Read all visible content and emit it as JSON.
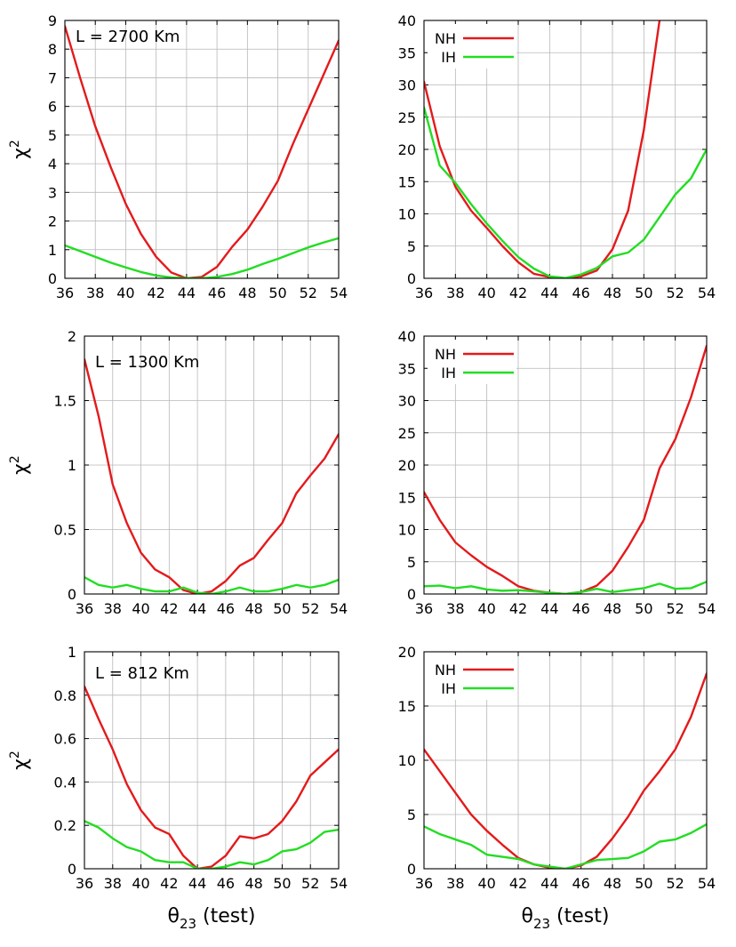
{
  "chart_data": [
    {
      "type": "line",
      "panel": "row1-left",
      "annotation": "L = 2700 Km",
      "title": "",
      "xlabel": "",
      "ylabel": "χ2",
      "xlim": [
        36,
        54
      ],
      "ylim": [
        0,
        9
      ],
      "xticks": [
        "36",
        "38",
        "40",
        "42",
        "44",
        "46",
        "48",
        "50",
        "52",
        "54"
      ],
      "yticks": [
        "0",
        "1",
        "2",
        "3",
        "4",
        "5",
        "6",
        "7",
        "8",
        "9"
      ],
      "x": [
        36,
        37,
        38,
        39,
        40,
        41,
        42,
        43,
        44,
        45,
        46,
        47,
        48,
        49,
        50,
        51,
        52,
        53,
        54
      ],
      "series": [
        {
          "name": "NH",
          "color": "#e31a1c",
          "values": [
            8.8,
            7.0,
            5.3,
            3.9,
            2.6,
            1.55,
            0.75,
            0.2,
            0.0,
            0.05,
            0.4,
            1.1,
            1.7,
            2.5,
            3.4,
            4.7,
            5.9,
            7.1,
            8.3
          ]
        },
        {
          "name": "IH",
          "color": "#22dd22",
          "values": [
            1.15,
            0.95,
            0.75,
            0.55,
            0.38,
            0.22,
            0.1,
            0.03,
            0.0,
            0.0,
            0.05,
            0.15,
            0.3,
            0.5,
            0.68,
            0.88,
            1.08,
            1.25,
            1.4
          ]
        }
      ]
    },
    {
      "type": "line",
      "panel": "row1-right",
      "annotation": "",
      "title": "",
      "xlabel": "",
      "ylabel": "",
      "xlim": [
        36,
        54
      ],
      "ylim": [
        0,
        40
      ],
      "xticks": [
        "36",
        "38",
        "40",
        "42",
        "44",
        "46",
        "48",
        "50",
        "52",
        "54"
      ],
      "yticks": [
        "0",
        "5",
        "10",
        "15",
        "20",
        "25",
        "30",
        "35",
        "40"
      ],
      "legend": {
        "position": "top-left",
        "entries": [
          "NH",
          "IH"
        ]
      },
      "x": [
        36,
        37,
        38,
        39,
        40,
        41,
        42,
        43,
        44,
        45,
        46,
        47,
        48,
        49,
        50,
        51,
        52,
        53,
        54
      ],
      "series": [
        {
          "name": "NH",
          "color": "#e31a1c",
          "values": [
            30.5,
            20.5,
            14.2,
            10.5,
            7.8,
            5.0,
            2.5,
            0.7,
            0.2,
            0.0,
            0.3,
            1.2,
            4.5,
            10.5,
            23.0,
            40.0,
            null,
            null,
            null
          ]
        },
        {
          "name": "IH",
          "color": "#22dd22",
          "values": [
            26.5,
            17.5,
            14.8,
            11.5,
            8.5,
            5.8,
            3.3,
            1.5,
            0.3,
            0.05,
            0.6,
            1.6,
            3.4,
            4.0,
            6.0,
            9.5,
            13.0,
            15.5,
            20.0
          ]
        }
      ]
    },
    {
      "type": "line",
      "panel": "row2-left",
      "annotation": "L = 1300 Km",
      "title": "",
      "xlabel": "",
      "ylabel": "χ2",
      "xlim": [
        36,
        54
      ],
      "ylim": [
        0,
        2
      ],
      "xticks": [
        "36",
        "38",
        "40",
        "42",
        "44",
        "46",
        "48",
        "50",
        "52",
        "54"
      ],
      "yticks": [
        "0",
        "0.5",
        "1",
        "1.5",
        "2"
      ],
      "x": [
        36,
        37,
        38,
        39,
        40,
        41,
        42,
        43,
        44,
        45,
        46,
        47,
        48,
        49,
        50,
        51,
        52,
        53,
        54
      ],
      "series": [
        {
          "name": "NH",
          "color": "#e31a1c",
          "values": [
            1.82,
            1.38,
            0.85,
            0.55,
            0.32,
            0.19,
            0.13,
            0.03,
            0.0,
            0.02,
            0.1,
            0.22,
            0.28,
            0.42,
            0.55,
            0.78,
            0.92,
            1.05,
            1.24
          ]
        },
        {
          "name": "IH",
          "color": "#22dd22",
          "values": [
            0.13,
            0.07,
            0.05,
            0.07,
            0.04,
            0.02,
            0.02,
            0.05,
            0.01,
            0.0,
            0.02,
            0.05,
            0.02,
            0.02,
            0.04,
            0.07,
            0.05,
            0.07,
            0.11
          ]
        }
      ]
    },
    {
      "type": "line",
      "panel": "row2-right",
      "annotation": "",
      "title": "",
      "xlabel": "",
      "ylabel": "",
      "xlim": [
        36,
        54
      ],
      "ylim": [
        0,
        40
      ],
      "xticks": [
        "36",
        "38",
        "40",
        "42",
        "44",
        "46",
        "48",
        "50",
        "52",
        "54"
      ],
      "yticks": [
        "0",
        "5",
        "10",
        "15",
        "20",
        "25",
        "30",
        "35",
        "40"
      ],
      "legend": {
        "position": "top-left",
        "entries": [
          "NH",
          "IH"
        ]
      },
      "x": [
        36,
        37,
        38,
        39,
        40,
        41,
        42,
        43,
        44,
        45,
        46,
        47,
        48,
        49,
        50,
        51,
        52,
        53,
        54
      ],
      "series": [
        {
          "name": "NH",
          "color": "#e31a1c",
          "values": [
            15.8,
            11.5,
            8.0,
            6.0,
            4.2,
            2.8,
            1.2,
            0.5,
            0.2,
            0.0,
            0.3,
            1.3,
            3.6,
            7.3,
            11.5,
            19.5,
            24.0,
            30.5,
            38.5
          ]
        },
        {
          "name": "IH",
          "color": "#22dd22",
          "values": [
            1.2,
            1.3,
            0.9,
            1.2,
            0.7,
            0.5,
            0.6,
            0.4,
            0.2,
            0.0,
            0.3,
            0.8,
            0.3,
            0.6,
            0.9,
            1.6,
            0.8,
            0.9,
            1.9
          ]
        }
      ]
    },
    {
      "type": "line",
      "panel": "row3-left",
      "annotation": "L = 812 Km",
      "title": "",
      "xlabel": "θ23 (test)",
      "ylabel": "χ2",
      "xlim": [
        36,
        54
      ],
      "ylim": [
        0,
        1
      ],
      "xticks": [
        "36",
        "38",
        "40",
        "42",
        "44",
        "46",
        "48",
        "50",
        "52",
        "54"
      ],
      "yticks": [
        "0",
        "0.2",
        "0.4",
        "0.6",
        "0.8",
        "1"
      ],
      "x": [
        36,
        37,
        38,
        39,
        40,
        41,
        42,
        43,
        44,
        45,
        46,
        47,
        48,
        49,
        50,
        51,
        52,
        53,
        54
      ],
      "series": [
        {
          "name": "NH",
          "color": "#e31a1c",
          "values": [
            0.84,
            0.69,
            0.55,
            0.39,
            0.27,
            0.19,
            0.16,
            0.06,
            0.0,
            0.01,
            0.06,
            0.15,
            0.14,
            0.16,
            0.22,
            0.31,
            0.43,
            0.49,
            0.55
          ]
        },
        {
          "name": "IH",
          "color": "#22dd22",
          "values": [
            0.22,
            0.19,
            0.14,
            0.1,
            0.08,
            0.04,
            0.03,
            0.03,
            0.0,
            0.0,
            0.01,
            0.03,
            0.02,
            0.04,
            0.08,
            0.09,
            0.12,
            0.17,
            0.18
          ]
        }
      ]
    },
    {
      "type": "line",
      "panel": "row3-right",
      "annotation": "",
      "title": "",
      "xlabel": "θ23 (test)",
      "ylabel": "",
      "xlim": [
        36,
        54
      ],
      "ylim": [
        0,
        20
      ],
      "xticks": [
        "36",
        "38",
        "40",
        "42",
        "44",
        "46",
        "48",
        "50",
        "52",
        "54"
      ],
      "yticks": [
        "0",
        "5",
        "10",
        "15",
        "20"
      ],
      "legend": {
        "position": "top-left",
        "entries": [
          "NH",
          "IH"
        ]
      },
      "x": [
        36,
        37,
        38,
        39,
        40,
        41,
        42,
        43,
        44,
        45,
        46,
        47,
        48,
        49,
        50,
        51,
        52,
        53,
        54
      ],
      "series": [
        {
          "name": "NH",
          "color": "#e31a1c",
          "values": [
            11.0,
            9.0,
            7.0,
            5.0,
            3.5,
            2.2,
            1.0,
            0.4,
            0.1,
            0.0,
            0.3,
            1.1,
            2.8,
            4.8,
            7.2,
            9.0,
            11.0,
            14.0,
            18.0
          ]
        },
        {
          "name": "IH",
          "color": "#22dd22",
          "values": [
            3.9,
            3.2,
            2.7,
            2.2,
            1.3,
            1.1,
            0.9,
            0.4,
            0.2,
            0.0,
            0.4,
            0.8,
            0.9,
            1.0,
            1.6,
            2.5,
            2.7,
            3.3,
            4.1
          ]
        }
      ]
    }
  ]
}
